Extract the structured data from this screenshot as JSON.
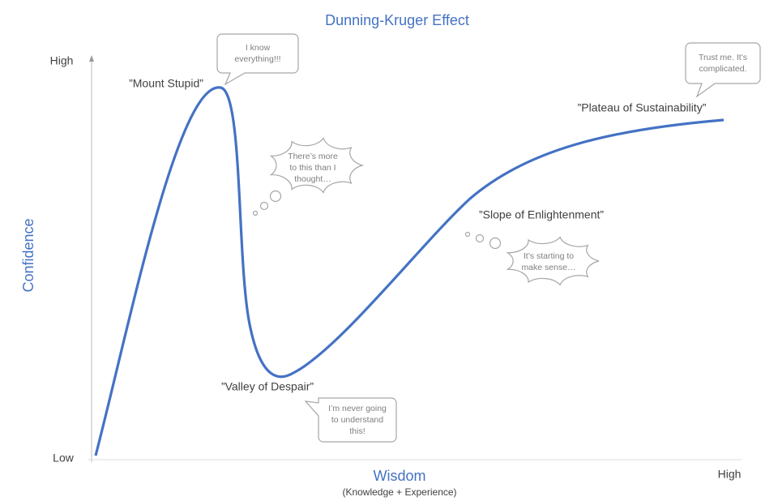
{
  "title": "Dunning-Kruger Effect",
  "y_axis": {
    "label": "Confidence",
    "high": "High",
    "low": "Low"
  },
  "x_axis": {
    "label": "Wisdom",
    "sublabel": "(Knowledge + Experience)",
    "high": "High"
  },
  "stages": [
    "”Mount Stupid”",
    "”Valley of Despair”",
    "”Slope of Enlightenment”",
    "”Plateau of Sustainability”"
  ],
  "bubbles": [
    {
      "lines": [
        "I know",
        "everything!!!"
      ]
    },
    {
      "lines": [
        "There’s more",
        "to this than I",
        "thought…"
      ]
    },
    {
      "lines": [
        "I’m never going",
        "to understand",
        "this!"
      ]
    },
    {
      "lines": [
        "It’s starting to",
        "make sense…"
      ]
    },
    {
      "lines": [
        "Trust me. It’s",
        "complicated."
      ]
    }
  ]
}
